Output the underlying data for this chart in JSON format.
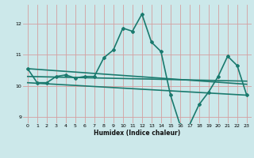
{
  "title": "",
  "xlabel": "Humidex (Indice chaleur)",
  "bg_color": "#cce8ea",
  "grid_color": "#d4a0a0",
  "line_color": "#1a7a6e",
  "xlim": [
    -0.5,
    23.5
  ],
  "ylim": [
    8.8,
    12.6
  ],
  "xticks": [
    0,
    1,
    2,
    3,
    4,
    5,
    6,
    7,
    8,
    9,
    10,
    11,
    12,
    13,
    14,
    15,
    16,
    17,
    18,
    19,
    20,
    21,
    22,
    23
  ],
  "yticks": [
    9,
    10,
    11,
    12
  ],
  "series": [
    {
      "x": [
        0,
        1,
        2,
        3,
        4,
        5,
        6,
        7,
        8,
        9,
        10,
        11,
        12,
        13,
        14,
        15,
        16,
        17,
        18,
        19,
        20,
        21,
        22,
        23
      ],
      "y": [
        10.55,
        10.1,
        10.1,
        10.3,
        10.35,
        10.25,
        10.3,
        10.3,
        10.9,
        11.15,
        11.85,
        11.75,
        12.3,
        11.4,
        11.1,
        9.7,
        8.75,
        8.75,
        9.4,
        9.8,
        10.3,
        10.95,
        10.65,
        9.7
      ],
      "marker": true,
      "linewidth": 1.2
    },
    {
      "x": [
        0,
        23
      ],
      "y": [
        10.55,
        10.05
      ],
      "marker": false,
      "linewidth": 1.2
    },
    {
      "x": [
        0,
        23
      ],
      "y": [
        10.3,
        10.15
      ],
      "marker": false,
      "linewidth": 1.2
    },
    {
      "x": [
        0,
        23
      ],
      "y": [
        10.1,
        9.7
      ],
      "marker": false,
      "linewidth": 1.2
    }
  ]
}
